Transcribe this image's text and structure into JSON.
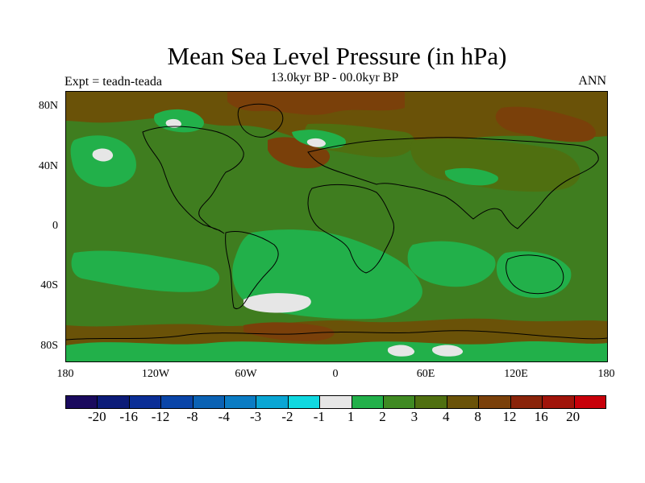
{
  "title": "Mean Sea Level Pressure (in hPa)",
  "subtitle": "13.0kyr BP - 00.0kyr BP",
  "left_label": "Expt = teadn-teada",
  "right_label": "ANN",
  "lat_labels": [
    "80N",
    "40N",
    "0",
    "40S",
    "80S"
  ],
  "lon_labels": [
    "180",
    "120W",
    "60W",
    "0",
    "60E",
    "120E",
    "180"
  ],
  "colorbar": {
    "colors": [
      "#1a0a5e",
      "#0c1b78",
      "#0b2e96",
      "#0a45a8",
      "#0b62b4",
      "#0b7cc4",
      "#0aa6d4",
      "#10d8e0",
      "#e6e6e6",
      "#22b04a",
      "#3f8a22",
      "#4f6f10",
      "#6a5208",
      "#7a400a",
      "#8a240a",
      "#a0140a",
      "#c8000a"
    ],
    "labels": [
      "-20",
      "-16",
      "-12",
      "-8",
      "-4",
      "-3",
      "-2",
      "-1",
      "1",
      "2",
      "3",
      "4",
      "8",
      "12",
      "16",
      "20"
    ]
  },
  "colors": {
    "base": "#3f7d1f",
    "light_green": "#22b04a",
    "olive": "#4f6f10",
    "brown": "#6a5208",
    "dark_brown": "#7a400a",
    "white": "#e6e6e6"
  }
}
